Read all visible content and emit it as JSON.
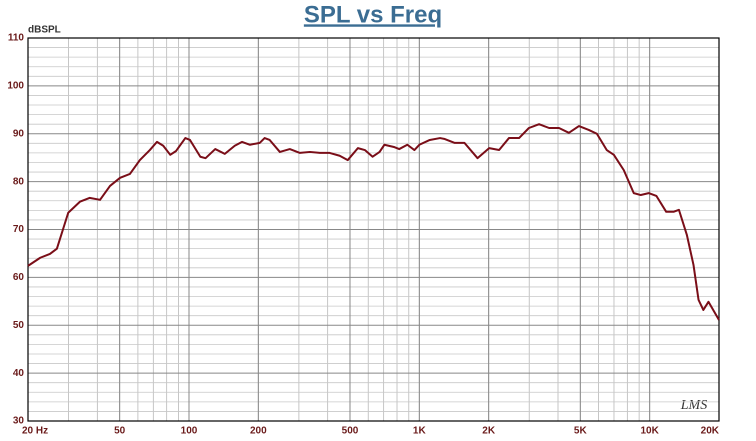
{
  "chart_data": {
    "type": "line",
    "title": "SPL vs Freq",
    "y_label": "dBSPL",
    "watermark": "LMS",
    "log_x": true,
    "grid": true,
    "color": "#7a0e18",
    "xlim": [
      20,
      20000
    ],
    "ylim": [
      30,
      110
    ],
    "xticks": [
      {
        "value": 20,
        "label": "20  Hz"
      },
      50,
      100,
      200,
      500,
      {
        "value": 1000,
        "label": "1K"
      },
      {
        "value": 2000,
        "label": "2K"
      },
      {
        "value": 5000,
        "label": "5K"
      },
      {
        "value": 10000,
        "label": "10K"
      },
      {
        "value": 20000,
        "label": "20K"
      }
    ],
    "yticks": [
      30,
      40,
      50,
      60,
      70,
      80,
      90,
      100,
      110
    ],
    "x": [
      20,
      22.6,
      24.9,
      26.7,
      29.9,
      33.6,
      37,
      41.1,
      45.4,
      50.2,
      55.4,
      61.2,
      67.6,
      72.6,
      77.3,
      82.9,
      87.9,
      96.4,
      101,
      112,
      118,
      130,
      143,
      158,
      170,
      184,
      203,
      213,
      224,
      248,
      274,
      303,
      335,
      370,
      408,
      451,
      489,
      541,
      580,
      627,
      672,
      705,
      780,
      818,
      887,
      952,
      1000,
      1110,
      1230,
      1290,
      1420,
      1570,
      1790,
      2010,
      2220,
      2450,
      2710,
      2990,
      3310,
      3660,
      4040,
      4460,
      4930,
      5440,
      5900,
      6510,
      6990,
      7720,
      8530,
      9150,
      9900,
      10700,
      11800,
      12700,
      13400,
      14500,
      15500,
      16300,
      17100,
      18000,
      20000
    ],
    "values": [
      62.4,
      64.1,
      64.9,
      66.0,
      73.5,
      75.8,
      76.6,
      76.2,
      79.1,
      80.8,
      81.6,
      84.5,
      86.6,
      88.3,
      87.5,
      85.6,
      86.4,
      89.1,
      88.7,
      85.2,
      84.9,
      86.8,
      85.8,
      87.5,
      88.3,
      87.7,
      88.1,
      89.1,
      88.7,
      86.2,
      86.8,
      86.0,
      86.2,
      86.0,
      86.0,
      85.4,
      84.5,
      87.0,
      86.6,
      85.2,
      86.2,
      87.7,
      87.2,
      86.8,
      87.7,
      86.6,
      87.7,
      88.7,
      89.1,
      88.9,
      88.1,
      88.1,
      84.9,
      87.0,
      86.6,
      89.1,
      89.1,
      91.2,
      92.0,
      91.2,
      91.2,
      90.2,
      91.6,
      90.8,
      90.0,
      86.6,
      85.6,
      82.4,
      77.6,
      77.2,
      77.6,
      77.0,
      73.7,
      73.7,
      74.1,
      68.9,
      62.6,
      55.3,
      53.2,
      54.9,
      51.1
    ]
  }
}
